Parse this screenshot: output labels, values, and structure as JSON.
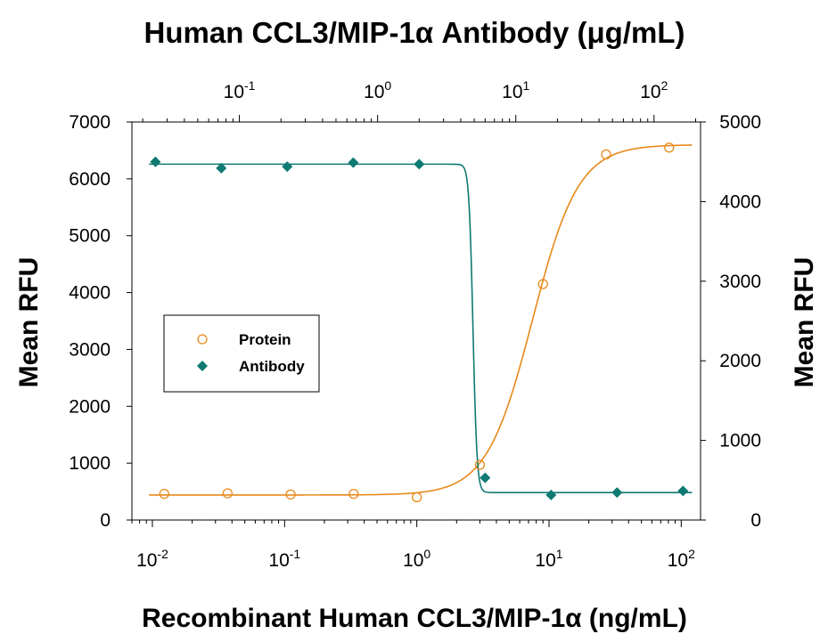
{
  "chart_data": {
    "type": "line",
    "title": "Human CCL3/MIP-1α Antibody (μg/mL)",
    "xlabel": "Recombinant Human CCL3/MIP-1α (ng/mL)",
    "ylabel_left": "Mean RFU",
    "ylabel_right": "Mean RFU",
    "x_bottom": {
      "scale": "log",
      "range": [
        0.007,
        140
      ],
      "ticks": [
        0.01,
        0.1,
        1,
        10,
        100
      ],
      "tick_labels": [
        {
          "base": "10",
          "exp": "-2"
        },
        {
          "base": "10",
          "exp": "-1"
        },
        {
          "base": "10",
          "exp": "0"
        },
        {
          "base": "10",
          "exp": "1"
        },
        {
          "base": "10",
          "exp": "2"
        }
      ]
    },
    "x_top": {
      "scale": "log",
      "range": [
        0.0167,
        217
      ],
      "ticks": [
        0.1,
        1,
        10,
        100
      ],
      "tick_labels": [
        {
          "base": "10",
          "exp": "-1"
        },
        {
          "base": "10",
          "exp": "0"
        },
        {
          "base": "10",
          "exp": "1"
        },
        {
          "base": "10",
          "exp": "2"
        }
      ]
    },
    "y_left": {
      "range": [
        0,
        7000
      ],
      "ticks": [
        0,
        1000,
        2000,
        3000,
        4000,
        5000,
        6000,
        7000
      ],
      "tick_labels": [
        "0",
        "1000",
        "2000",
        "3000",
        "4000",
        "5000",
        "6000",
        "7000"
      ]
    },
    "y_right": {
      "range": [
        0,
        5000
      ],
      "ticks": [
        0,
        1000,
        2000,
        3000,
        4000,
        5000
      ],
      "tick_labels": [
        "0",
        "1000",
        "2000",
        "3000",
        "4000",
        "5000"
      ]
    },
    "grid": false,
    "legend": {
      "position": "middle-left"
    },
    "series": [
      {
        "name": "Protein",
        "axis": "bottom-left",
        "marker": "open-circle",
        "color": "#E8891A",
        "points": [
          {
            "x": 0.0123,
            "y": 460
          },
          {
            "x": 0.037,
            "y": 470
          },
          {
            "x": 0.111,
            "y": 450
          },
          {
            "x": 0.333,
            "y": 460
          },
          {
            "x": 1.0,
            "y": 400
          },
          {
            "x": 3.0,
            "y": 970
          },
          {
            "x": 9.0,
            "y": 4150
          },
          {
            "x": 27.0,
            "y": 6430
          },
          {
            "x": 81.0,
            "y": 6550
          }
        ],
        "fit": {
          "bottom": 440,
          "top": 6600,
          "ec50": 7.5,
          "hill": 2.5
        }
      },
      {
        "name": "Antibody",
        "axis": "top-right",
        "marker": "filled-diamond",
        "color": "#0E7A72",
        "points": [
          {
            "x": 0.0247,
            "y": 4500
          },
          {
            "x": 0.074,
            "y": 4420
          },
          {
            "x": 0.222,
            "y": 4440
          },
          {
            "x": 0.667,
            "y": 4490
          },
          {
            "x": 2.0,
            "y": 4470
          },
          {
            "x": 6.0,
            "y": 530
          },
          {
            "x": 18.0,
            "y": 315
          },
          {
            "x": 54.0,
            "y": 345
          },
          {
            "x": 162.0,
            "y": 365
          }
        ],
        "fit": {
          "top": 4470,
          "bottom": 345,
          "ic50": 4.9,
          "hill": 30
        }
      }
    ]
  }
}
